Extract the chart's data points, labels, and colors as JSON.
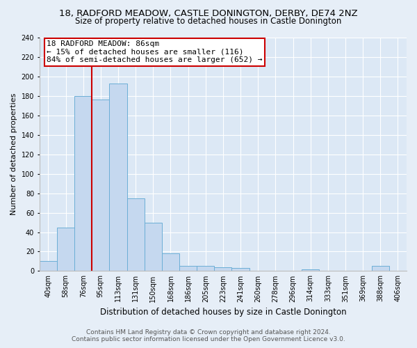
{
  "title": "18, RADFORD MEADOW, CASTLE DONINGTON, DERBY, DE74 2NZ",
  "subtitle": "Size of property relative to detached houses in Castle Donington",
  "xlabel": "Distribution of detached houses by size in Castle Donington",
  "ylabel": "Number of detached properties",
  "categories": [
    "40sqm",
    "58sqm",
    "76sqm",
    "95sqm",
    "113sqm",
    "131sqm",
    "150sqm",
    "168sqm",
    "186sqm",
    "205sqm",
    "223sqm",
    "241sqm",
    "260sqm",
    "278sqm",
    "296sqm",
    "314sqm",
    "333sqm",
    "351sqm",
    "369sqm",
    "388sqm",
    "406sqm"
  ],
  "bar_values": [
    10,
    45,
    180,
    176,
    193,
    75,
    50,
    18,
    5,
    5,
    4,
    3,
    0,
    0,
    0,
    2,
    0,
    0,
    0,
    5,
    0
  ],
  "bar_color": "#c5d8ef",
  "bar_edge_color": "#6baed6",
  "vline_x_index": 2.5,
  "vline_color": "#cc0000",
  "annotation_line1": "18 RADFORD MEADOW: 86sqm",
  "annotation_line2": "← 15% of detached houses are smaller (116)",
  "annotation_line3": "84% of semi-detached houses are larger (652) →",
  "annotation_box_facecolor": "#ffffff",
  "annotation_box_edgecolor": "#cc0000",
  "ylim": [
    0,
    240
  ],
  "yticks": [
    0,
    20,
    40,
    60,
    80,
    100,
    120,
    140,
    160,
    180,
    200,
    220,
    240
  ],
  "background_color": "#dce8f5",
  "fig_background_color": "#e6eef7",
  "title_fontsize": 9.5,
  "subtitle_fontsize": 8.5,
  "xlabel_fontsize": 8.5,
  "ylabel_fontsize": 8,
  "tick_fontsize": 7,
  "annotation_fontsize": 8,
  "footer_fontsize": 6.5,
  "footer_line1": "Contains HM Land Registry data © Crown copyright and database right 2024.",
  "footer_line2": "Contains public sector information licensed under the Open Government Licence v3.0."
}
